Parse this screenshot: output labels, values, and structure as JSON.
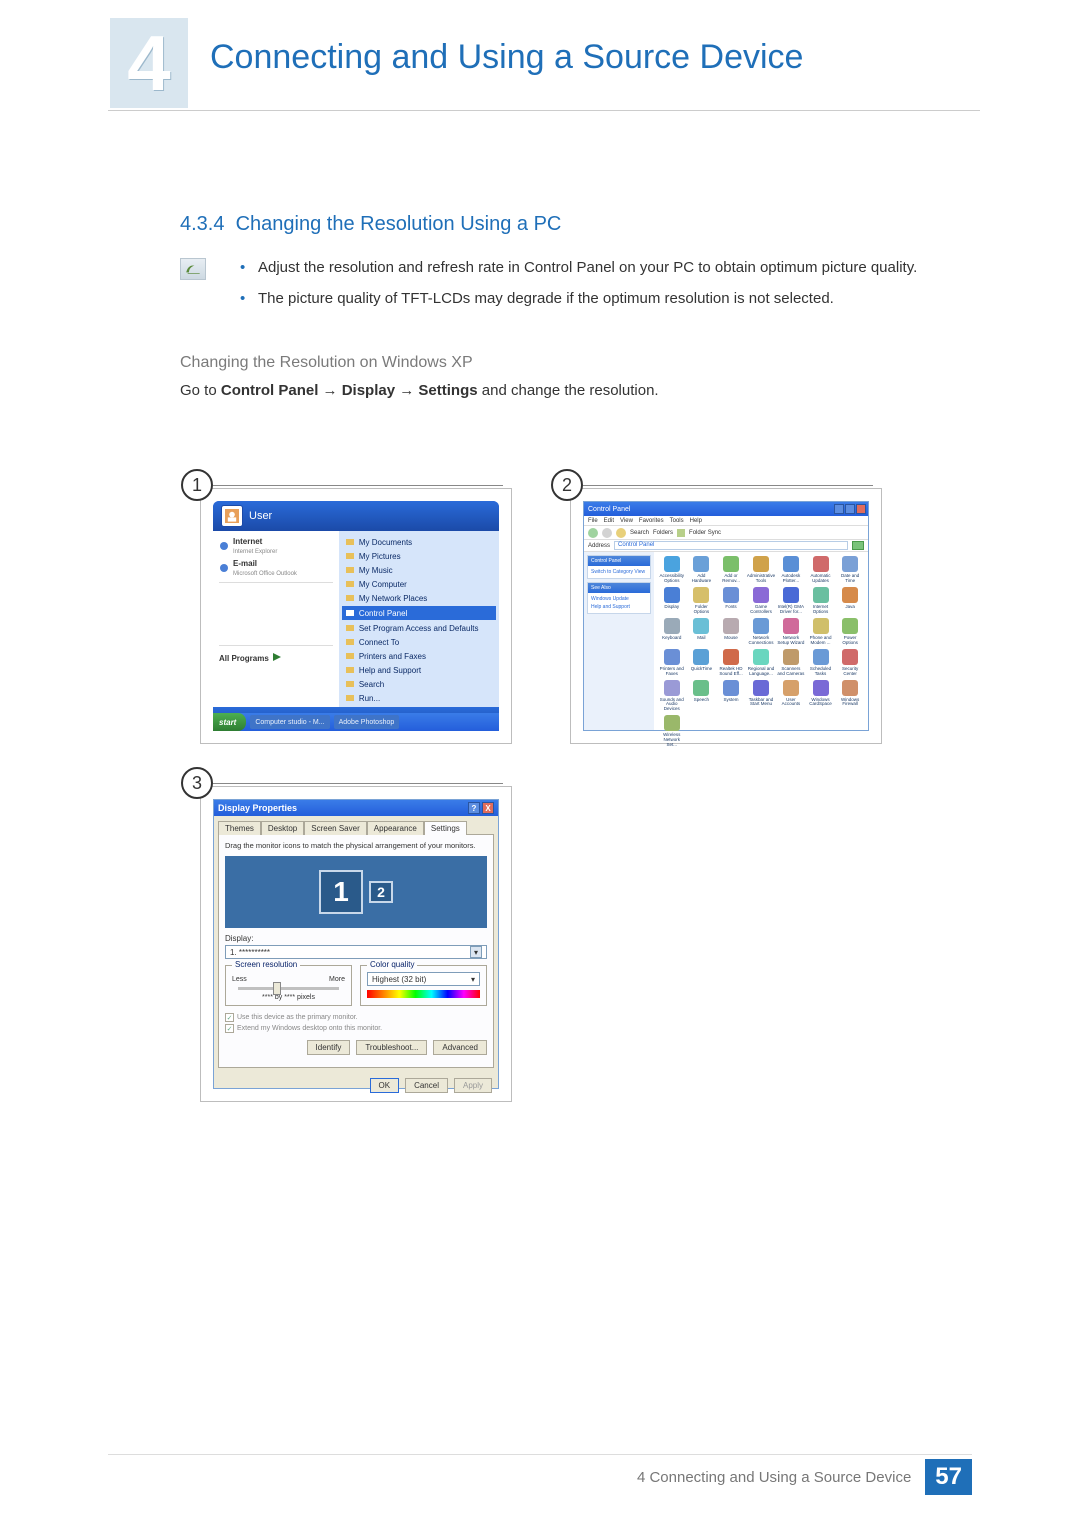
{
  "header": {
    "chapter_number": "4",
    "chapter_title": "Connecting and Using a Source Device"
  },
  "section": {
    "number": "4.3.4",
    "title": "Changing the Resolution Using a PC",
    "bullets": [
      "Adjust the resolution and refresh rate in Control Panel on your PC to obtain optimum picture quality.",
      "The picture quality of TFT-LCDs may degrade if the optimum resolution is not selected."
    ],
    "sub_heading": "Changing the Resolution on Windows XP",
    "body_prefix": "Go to ",
    "body_bold1": "Control Panel",
    "body_bold2": "Display",
    "body_bold3": "Settings",
    "body_suffix": " and change the resolution.",
    "arrow": "→"
  },
  "fig1": {
    "num": "1",
    "user_label": "User",
    "left_pinned": [
      {
        "label": "Internet",
        "sub": "Internet Explorer"
      },
      {
        "label": "E-mail",
        "sub": "Microsoft Office Outlook"
      }
    ],
    "left_allprograms": "All Programs",
    "right_items": [
      "My Documents",
      "My Pictures",
      "My Music",
      "My Computer",
      "My Network Places",
      "Control Panel",
      "Set Program Access and Defaults",
      "Connect To",
      "Printers and Faxes",
      "Help and Support",
      "Search",
      "Run..."
    ],
    "right_selected_index": 5,
    "logoff": "Log Off",
    "shutdown": "Turn Off Computer",
    "start": "start",
    "task_items": [
      "Computer studio - M...",
      "Adobe Photoshop"
    ]
  },
  "fig2": {
    "num": "2",
    "title": "Control Panel",
    "menus": [
      "File",
      "Edit",
      "View",
      "Favorites",
      "Tools",
      "Help"
    ],
    "toolbar_search": "Search",
    "toolbar_folders": "Folders",
    "toolbar_sync": "Folder Sync",
    "address_label": "Address",
    "address_value": "Control Panel",
    "side_pane1_head": "Control Panel",
    "side_pane1_item": "Switch to Category View",
    "side_pane2_head": "See Also",
    "side_pane2_items": [
      "Windows Update",
      "Help and Support"
    ],
    "icons": [
      {
        "label": "Accessibility Options",
        "c": "#4aa3df"
      },
      {
        "label": "Add Hardware",
        "c": "#6aa0d8"
      },
      {
        "label": "Add or Remov...",
        "c": "#7bbf6a"
      },
      {
        "label": "Administrative Tools",
        "c": "#d0a24a"
      },
      {
        "label": "Autodesk Plotter...",
        "c": "#5a8fd6"
      },
      {
        "label": "Automatic Updates",
        "c": "#d06a6a"
      },
      {
        "label": "Date and Time",
        "c": "#7aa0d6"
      },
      {
        "label": "Display",
        "c": "#4a7fd6"
      },
      {
        "label": "Folder Options",
        "c": "#d6bf6a"
      },
      {
        "label": "Fonts",
        "c": "#6a8fd6"
      },
      {
        "label": "Game Controllers",
        "c": "#8a6ad6"
      },
      {
        "label": "Intel(R) GMA Driver for...",
        "c": "#4a6ad6"
      },
      {
        "label": "Internet Options",
        "c": "#6abfa0"
      },
      {
        "label": "Java",
        "c": "#d68a4a"
      },
      {
        "label": "Keyboard",
        "c": "#9aaab8"
      },
      {
        "label": "Mail",
        "c": "#6abfd6"
      },
      {
        "label": "Mouse",
        "c": "#b8aab0"
      },
      {
        "label": "Network Connections",
        "c": "#6a9ad6"
      },
      {
        "label": "Network Setup Wizard",
        "c": "#d06a9a"
      },
      {
        "label": "Phone and Modem ...",
        "c": "#d0bf6a"
      },
      {
        "label": "Power Options",
        "c": "#8abf6a"
      },
      {
        "label": "Printers and Faxes",
        "c": "#6a8fd6"
      },
      {
        "label": "QuickTime",
        "c": "#5aa0d6"
      },
      {
        "label": "Realtek HD Sound Eff...",
        "c": "#d06a4a"
      },
      {
        "label": "Regional and Language...",
        "c": "#6ad6bf"
      },
      {
        "label": "Scanners and Cameras",
        "c": "#bf9a6a"
      },
      {
        "label": "Scheduled Tasks",
        "c": "#6a9ad6"
      },
      {
        "label": "Security Center",
        "c": "#d06a6a"
      },
      {
        "label": "Sounds and Audio Devices",
        "c": "#9a9ad6"
      },
      {
        "label": "Speech",
        "c": "#6abf8a"
      },
      {
        "label": "System",
        "c": "#6a8fd6"
      },
      {
        "label": "Taskbar and Start Menu",
        "c": "#6a6ad6"
      },
      {
        "label": "User Accounts",
        "c": "#d6a06a"
      },
      {
        "label": "Windows CardSpace",
        "c": "#7a6ad6"
      },
      {
        "label": "Windows Firewall",
        "c": "#d0906a"
      },
      {
        "label": "Wireless Network Set...",
        "c": "#9ab86a"
      }
    ]
  },
  "fig3": {
    "num": "3",
    "title": "Display Properties",
    "tabs": [
      "Themes",
      "Desktop",
      "Screen Saver",
      "Appearance",
      "Settings"
    ],
    "active_tab": 4,
    "drag_text": "Drag the monitor icons to match the physical arrangement of your monitors.",
    "display_label": "Display:",
    "display_value": "1. **********",
    "group_res": "Screen resolution",
    "res_less": "Less",
    "res_more": "More",
    "res_value": "**** by **** pixels",
    "slider_pos_pct": 35,
    "group_colq": "Color quality",
    "colq_value": "Highest (32 bit)",
    "chk1": "Use this device as the primary monitor.",
    "chk2": "Extend my Windows desktop onto this monitor.",
    "btn_identify": "Identify",
    "btn_troubleshoot": "Troubleshoot...",
    "btn_advanced": "Advanced",
    "btn_ok": "OK",
    "btn_cancel": "Cancel",
    "btn_apply": "Apply",
    "help_glyph": "?",
    "close_glyph": "X"
  },
  "footer": {
    "text": "4 Connecting and Using a Source Device",
    "page": "57"
  },
  "colors": {
    "accent": "#1f6fb8",
    "xp_blue_top": "#3a7ce8",
    "xp_blue_bot": "#245edb",
    "xp_green": "#4caf50",
    "panel_bg": "#ece9d8"
  }
}
